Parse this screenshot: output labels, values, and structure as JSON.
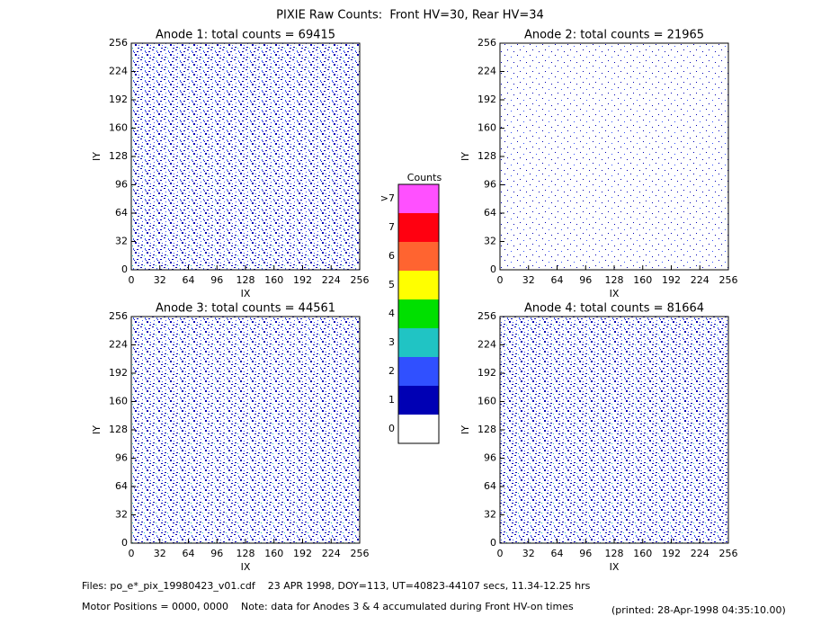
{
  "title": "PIXIE Raw Counts:  Front HV=30, Rear HV=34",
  "chart_data": [
    {
      "type": "heatmap",
      "title": "Anode 1: total counts = 69415",
      "xlabel": "IX",
      "ylabel": "IY",
      "xlim": [
        0,
        256
      ],
      "ylim": [
        0,
        256
      ],
      "xticks": [
        0,
        32,
        64,
        96,
        128,
        160,
        192,
        224,
        256
      ],
      "yticks": [
        0,
        32,
        64,
        96,
        128,
        160,
        192,
        224,
        256
      ]
    },
    {
      "type": "heatmap",
      "title": "Anode 2: total counts = 21965",
      "xlabel": "IX",
      "ylabel": "IY",
      "xlim": [
        0,
        256
      ],
      "ylim": [
        0,
        256
      ],
      "xticks": [
        0,
        32,
        64,
        96,
        128,
        160,
        192,
        224,
        256
      ],
      "yticks": [
        0,
        32,
        64,
        96,
        128,
        160,
        192,
        224,
        256
      ]
    },
    {
      "type": "heatmap",
      "title": "Anode 3: total counts = 44561",
      "xlabel": "IX",
      "ylabel": "IY",
      "xlim": [
        0,
        256
      ],
      "ylim": [
        0,
        256
      ],
      "xticks": [
        0,
        32,
        64,
        96,
        128,
        160,
        192,
        224,
        256
      ],
      "yticks": [
        0,
        32,
        64,
        96,
        128,
        160,
        192,
        224,
        256
      ]
    },
    {
      "type": "heatmap",
      "title": "Anode 4: total counts = 81664",
      "xlabel": "IX",
      "ylabel": "IY",
      "xlim": [
        0,
        256
      ],
      "ylim": [
        0,
        256
      ],
      "xticks": [
        0,
        32,
        64,
        96,
        128,
        160,
        192,
        224,
        256
      ],
      "yticks": [
        0,
        32,
        64,
        96,
        128,
        160,
        192,
        224,
        256
      ]
    }
  ],
  "colorbar": {
    "title": "Counts",
    "levels": [
      {
        "label": "0",
        "color": "#ffffff"
      },
      {
        "label": "1",
        "color": "#0000b4"
      },
      {
        "label": "2",
        "color": "#3050ff"
      },
      {
        "label": "3",
        "color": "#20c4c4"
      },
      {
        "label": "4",
        "color": "#00e000"
      },
      {
        "label": "5",
        "color": "#ffff00"
      },
      {
        "label": "6",
        "color": "#ff6430"
      },
      {
        "label": "7",
        "color": "#ff0010"
      },
      {
        "label": ">7",
        "color": "#ff50ff"
      }
    ]
  },
  "footer": {
    "files": "Files: po_e*_pix_19980423_v01.cdf    23 APR 1998, DOY=113, UT=40823-44107 secs, 11.34-12.25 hrs",
    "motor": "Motor Positions = 0000, 0000    Note: data for Anodes 3 & 4 accumulated during Front HV-on times",
    "printed": "(printed: 28-Apr-1998 04:35:10.00)"
  }
}
